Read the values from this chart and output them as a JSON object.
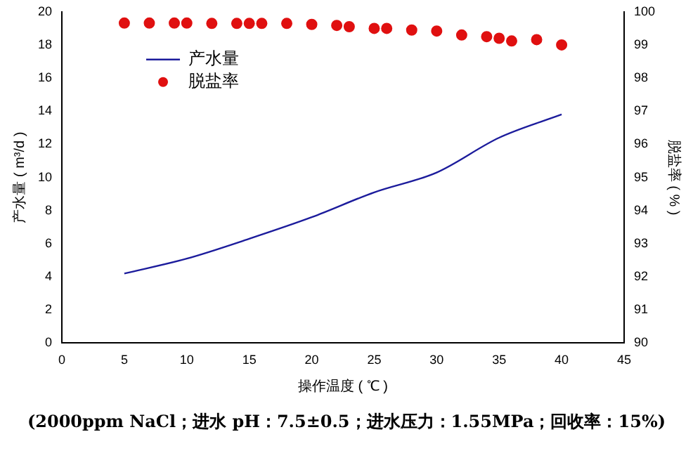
{
  "chart_data": {
    "type": "line",
    "xlabel": "操作温度 ( ℃ )",
    "ylabel": "产水量 ( m³/d )",
    "y2label": "脱盐率 ( % )",
    "xlim": [
      0,
      45
    ],
    "xticks": [
      0,
      5,
      10,
      15,
      20,
      25,
      30,
      35,
      40,
      45
    ],
    "ylim": [
      0,
      20
    ],
    "yticks": [
      0,
      2,
      4,
      6,
      8,
      10,
      12,
      14,
      16,
      18,
      20
    ],
    "y2lim": [
      90,
      100
    ],
    "y2ticks": [
      90,
      91,
      92,
      93,
      94,
      95,
      96,
      97,
      98,
      99,
      100
    ],
    "legend": "top left",
    "grid": false,
    "series": [
      {
        "name": "产水量",
        "color": "#1c1c9c",
        "marker": "none",
        "x": [
          5,
          10,
          15,
          20,
          25,
          30,
          35,
          40
        ],
        "values": [
          4.2,
          5.1,
          6.3,
          7.6,
          9.1,
          10.3,
          12.4,
          13.8
        ]
      },
      {
        "name": "脱盐率",
        "type": "scatter",
        "axis": "y2",
        "color": "#e01010",
        "marker": "circle",
        "x": [
          5,
          7,
          9,
          10,
          12,
          14,
          15,
          16,
          18,
          20,
          22,
          23,
          25,
          26,
          28,
          30,
          32,
          34,
          35,
          36,
          38,
          40
        ],
        "values": [
          99.66,
          99.66,
          99.66,
          99.66,
          99.65,
          99.65,
          99.65,
          99.65,
          99.65,
          99.62,
          99.59,
          99.55,
          99.5,
          99.5,
          99.45,
          99.42,
          99.3,
          99.25,
          99.2,
          99.12,
          99.16,
          99.0
        ]
      }
    ],
    "annotations": [
      "(2000ppm NaCl；进水 pH：7.5±0.5；进水压力：1.55MPa；回收率：15%)"
    ]
  }
}
